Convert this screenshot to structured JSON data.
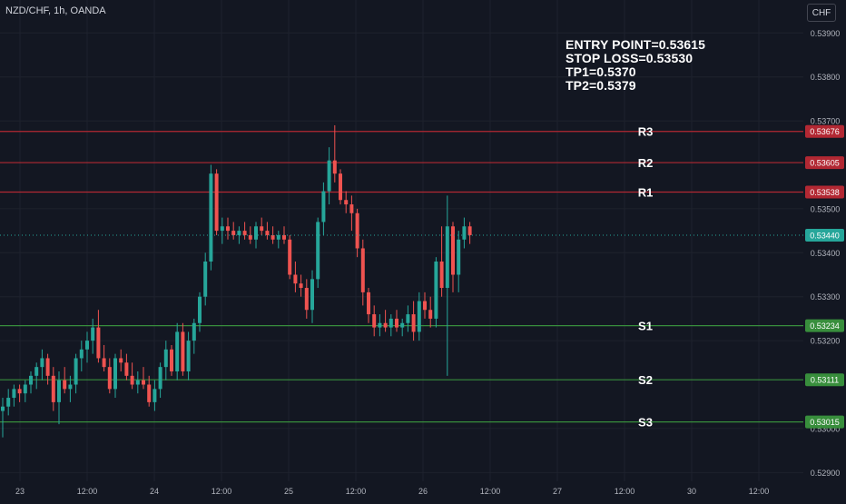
{
  "header": {
    "symbol": "NZD/CHF, 1h, OANDA",
    "currency": "CHF"
  },
  "notes": [
    "ENTRY POINT=0.53615",
    "STOP LOSS=0.53530",
    "TP1=0.5370",
    "TP2=0.5379"
  ],
  "colors": {
    "background": "#131722",
    "bull": "#26a69a",
    "bear": "#ef5350",
    "resistance": "#b22833",
    "support": "#388e3c",
    "grid": "#1e222d"
  },
  "chart_data": {
    "type": "candlestick",
    "ylim": [
      0.5288,
      0.53975
    ],
    "y_ticks": [
      "0.53900",
      "0.53800",
      "0.53700",
      "0.53500",
      "0.53400",
      "0.53300",
      "0.53200",
      "0.53000",
      "0.52900"
    ],
    "x_ticks": [
      "23",
      "12:00",
      "24",
      "12:00",
      "25",
      "12:00",
      "26",
      "12:00",
      "27",
      "12:00",
      "30",
      "12:00"
    ],
    "current_price": "0.53440",
    "levels": [
      {
        "label": "R3",
        "price": "0.53676",
        "kind": "resistance"
      },
      {
        "label": "R2",
        "price": "0.53605",
        "kind": "resistance"
      },
      {
        "label": "R1",
        "price": "0.53538",
        "kind": "resistance"
      },
      {
        "label": "S1",
        "price": "0.53234",
        "kind": "support"
      },
      {
        "label": "S2",
        "price": "0.53111",
        "kind": "support"
      },
      {
        "label": "S3",
        "price": "0.53015",
        "kind": "support"
      }
    ],
    "candles": [
      [
        0.5304,
        0.5307,
        0.5298,
        0.5305
      ],
      [
        0.5305,
        0.5309,
        0.5303,
        0.5307
      ],
      [
        0.5307,
        0.531,
        0.5305,
        0.5309
      ],
      [
        0.5309,
        0.531,
        0.5306,
        0.5308
      ],
      [
        0.5308,
        0.5311,
        0.5306,
        0.531
      ],
      [
        0.531,
        0.5313,
        0.5308,
        0.5312
      ],
      [
        0.5312,
        0.5315,
        0.5309,
        0.5314
      ],
      [
        0.5314,
        0.5318,
        0.5311,
        0.5316
      ],
      [
        0.5316,
        0.5317,
        0.531,
        0.5312
      ],
      [
        0.5312,
        0.5314,
        0.5304,
        0.5306
      ],
      [
        0.5306,
        0.5313,
        0.5301,
        0.5311
      ],
      [
        0.5311,
        0.5314,
        0.5308,
        0.5309
      ],
      [
        0.5309,
        0.5312,
        0.5306,
        0.531
      ],
      [
        0.531,
        0.5317,
        0.5308,
        0.5316
      ],
      [
        0.5316,
        0.532,
        0.5313,
        0.5318
      ],
      [
        0.5318,
        0.5322,
        0.5315,
        0.532
      ],
      [
        0.532,
        0.5325,
        0.5317,
        0.5323
      ],
      [
        0.5323,
        0.5327,
        0.5315,
        0.5316
      ],
      [
        0.5316,
        0.5319,
        0.5313,
        0.5314
      ],
      [
        0.5314,
        0.5316,
        0.5308,
        0.5309
      ],
      [
        0.5309,
        0.5317,
        0.5307,
        0.5316
      ],
      [
        0.5316,
        0.5318,
        0.5313,
        0.5315
      ],
      [
        0.5315,
        0.5317,
        0.5311,
        0.5312
      ],
      [
        0.5312,
        0.5315,
        0.5309,
        0.531
      ],
      [
        0.531,
        0.5313,
        0.5308,
        0.5311
      ],
      [
        0.5311,
        0.5314,
        0.5309,
        0.531
      ],
      [
        0.531,
        0.5312,
        0.5305,
        0.5306
      ],
      [
        0.5306,
        0.5311,
        0.5304,
        0.5309
      ],
      [
        0.5309,
        0.5315,
        0.5307,
        0.5314
      ],
      [
        0.5314,
        0.532,
        0.5311,
        0.5318
      ],
      [
        0.5318,
        0.5319,
        0.5312,
        0.5313
      ],
      [
        0.5313,
        0.5324,
        0.5311,
        0.5322
      ],
      [
        0.5322,
        0.5324,
        0.5312,
        0.5313
      ],
      [
        0.5313,
        0.5322,
        0.5311,
        0.532
      ],
      [
        0.532,
        0.5325,
        0.5317,
        0.5324
      ],
      [
        0.5324,
        0.5331,
        0.5322,
        0.533
      ],
      [
        0.533,
        0.534,
        0.5328,
        0.5338
      ],
      [
        0.5338,
        0.536,
        0.5336,
        0.5358
      ],
      [
        0.5358,
        0.5359,
        0.5344,
        0.5345
      ],
      [
        0.5345,
        0.5348,
        0.5342,
        0.5346
      ],
      [
        0.5346,
        0.5348,
        0.5343,
        0.5345
      ],
      [
        0.5345,
        0.5347,
        0.5343,
        0.5344
      ],
      [
        0.5344,
        0.5346,
        0.5342,
        0.5345
      ],
      [
        0.5345,
        0.5347,
        0.5343,
        0.5344
      ],
      [
        0.5344,
        0.5346,
        0.5342,
        0.5343
      ],
      [
        0.5343,
        0.5347,
        0.5341,
        0.5346
      ],
      [
        0.5346,
        0.5348,
        0.5344,
        0.5345
      ],
      [
        0.5345,
        0.5347,
        0.5343,
        0.5344
      ],
      [
        0.5344,
        0.5346,
        0.5342,
        0.5343
      ],
      [
        0.5343,
        0.5345,
        0.5341,
        0.5344
      ],
      [
        0.5344,
        0.5346,
        0.5342,
        0.5343
      ],
      [
        0.5343,
        0.5344,
        0.5334,
        0.5335
      ],
      [
        0.5335,
        0.5338,
        0.5331,
        0.5333
      ],
      [
        0.5333,
        0.5335,
        0.533,
        0.5332
      ],
      [
        0.5332,
        0.5334,
        0.5325,
        0.5327
      ],
      [
        0.5327,
        0.5336,
        0.5324,
        0.5334
      ],
      [
        0.5334,
        0.5348,
        0.5332,
        0.5347
      ],
      [
        0.5347,
        0.5356,
        0.5344,
        0.5354
      ],
      [
        0.5354,
        0.5364,
        0.5351,
        0.5361
      ],
      [
        0.5361,
        0.5369,
        0.5356,
        0.5358
      ],
      [
        0.5358,
        0.5359,
        0.5351,
        0.5352
      ],
      [
        0.5352,
        0.5354,
        0.5349,
        0.5351
      ],
      [
        0.5351,
        0.5353,
        0.5345,
        0.5349
      ],
      [
        0.5349,
        0.535,
        0.5339,
        0.5341
      ],
      [
        0.5341,
        0.5343,
        0.5328,
        0.5331
      ],
      [
        0.5331,
        0.5332,
        0.5324,
        0.5326
      ],
      [
        0.5326,
        0.5328,
        0.5321,
        0.5323
      ],
      [
        0.5323,
        0.5326,
        0.5321,
        0.5324
      ],
      [
        0.5324,
        0.5327,
        0.5322,
        0.5323
      ],
      [
        0.5323,
        0.5326,
        0.5321,
        0.5325
      ],
      [
        0.5325,
        0.5327,
        0.5322,
        0.5323
      ],
      [
        0.5323,
        0.5325,
        0.5321,
        0.5324
      ],
      [
        0.5324,
        0.5328,
        0.5322,
        0.5326
      ],
      [
        0.5326,
        0.5329,
        0.532,
        0.5322
      ],
      [
        0.5322,
        0.5331,
        0.532,
        0.5329
      ],
      [
        0.5329,
        0.5331,
        0.5325,
        0.5327
      ],
      [
        0.5327,
        0.533,
        0.5323,
        0.5325
      ],
      [
        0.5325,
        0.5339,
        0.5323,
        0.5338
      ],
      [
        0.5338,
        0.5346,
        0.533,
        0.5332
      ],
      [
        0.5332,
        0.5353,
        0.5312,
        0.5346
      ],
      [
        0.5346,
        0.5347,
        0.5331,
        0.5335
      ],
      [
        0.5335,
        0.5345,
        0.5331,
        0.5343
      ],
      [
        0.5343,
        0.5348,
        0.5341,
        0.5346
      ],
      [
        0.5346,
        0.5347,
        0.5342,
        0.5344
      ]
    ]
  }
}
